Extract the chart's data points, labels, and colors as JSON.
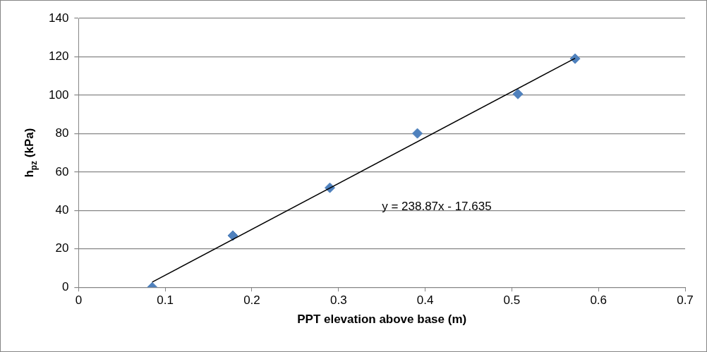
{
  "chart_data": {
    "type": "scatter",
    "xlabel": "PPT elevation above base (m)",
    "ylabel": "h$_{pz}$ (kPa)",
    "xlim": [
      0,
      0.7
    ],
    "xticks": [
      0,
      0.1,
      0.2,
      0.3,
      0.4,
      0.5,
      0.6,
      0.7
    ],
    "ylim": [
      0,
      140
    ],
    "yticks": [
      0,
      20,
      40,
      60,
      80,
      100,
      120,
      140
    ],
    "grid": "y",
    "legend": false,
    "marker": "diamond",
    "annotations": [
      "y = 238.87x - 17.635"
    ],
    "series": [
      {
        "color": "#4f81bd",
        "x": [
          0.085,
          0.178,
          0.29,
          0.391,
          0.507,
          0.573
        ],
        "values": [
          0,
          26.9,
          51.8,
          80.1,
          100.6,
          119.0
        ]
      },
      {
        "type": "line",
        "color": "#000000",
        "marker": "none",
        "x": [
          0.085,
          0.573
        ],
        "values": [
          2.7,
          119.2
        ]
      }
    ]
  }
}
